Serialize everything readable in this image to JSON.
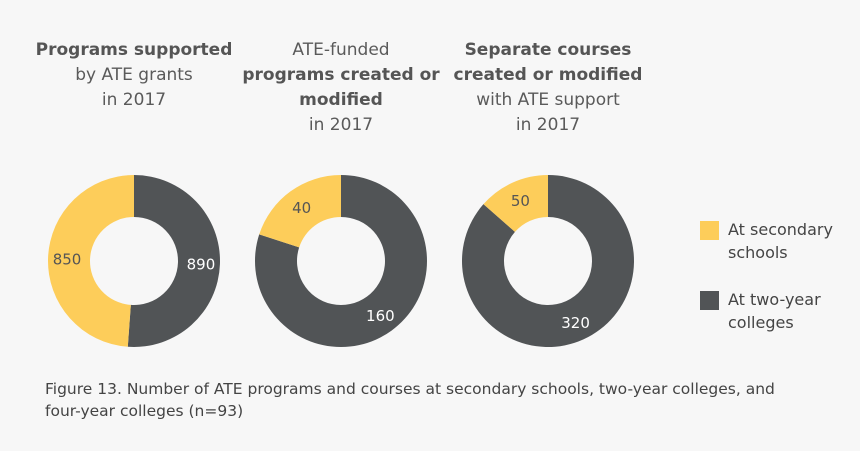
{
  "colors": {
    "secondary": "#FDCD5A",
    "two_year": "#515456",
    "background": "#f7f7f7"
  },
  "chart_data": [
    {
      "type": "pie",
      "donut": true,
      "title_lines": [
        {
          "text": "Programs supported",
          "bold": true
        },
        {
          "text": "by ATE grants",
          "bold": false
        },
        {
          "text": "in 2017",
          "bold": false
        }
      ],
      "categories": [
        "At secondary schools",
        "At two-year colleges"
      ],
      "values": [
        850,
        890
      ]
    },
    {
      "type": "pie",
      "donut": true,
      "title_lines": [
        {
          "text": "ATE-funded",
          "bold": false
        },
        {
          "text": "programs created or",
          "bold": true
        },
        {
          "text": "modified",
          "bold": true
        },
        {
          "text": "in 2017",
          "bold": false
        }
      ],
      "categories": [
        "At secondary schools",
        "At two-year colleges"
      ],
      "values": [
        40,
        160
      ]
    },
    {
      "type": "pie",
      "donut": true,
      "title_lines": [
        {
          "text": "Separate courses",
          "bold": true
        },
        {
          "text": "created or modified",
          "bold": true
        },
        {
          "text": "with ATE support",
          "bold": false
        },
        {
          "text": "in 2017",
          "bold": false
        }
      ],
      "categories": [
        "At secondary schools",
        "At two-year colleges"
      ],
      "values": [
        50,
        320
      ]
    }
  ],
  "legend": {
    "placement": "right",
    "items": [
      {
        "label_lines": [
          "At secondary",
          "schools"
        ],
        "color": "#FDCD5A"
      },
      {
        "label_lines": [
          "At two-year",
          "colleges"
        ],
        "color": "#515456"
      }
    ]
  },
  "caption": "Figure 13. Number of ATE programs and courses at secondary schools, two-year colleges, and four-year colleges (n=93)"
}
